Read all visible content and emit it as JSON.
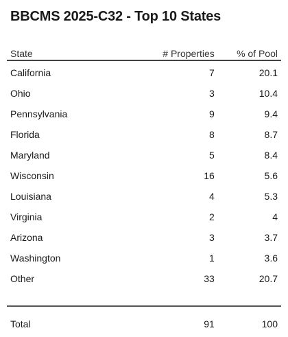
{
  "title": "BBCMS 2025-C32 - Top 10 States",
  "chart_data": {
    "type": "table",
    "title": "BBCMS 2025-C32 - Top 10 States",
    "columns": [
      "State",
      "# Properties",
      "% of Pool"
    ],
    "rows": [
      {
        "state": "California",
        "properties": "7",
        "pct": "20.1"
      },
      {
        "state": "Ohio",
        "properties": "3",
        "pct": "10.4"
      },
      {
        "state": "Pennsylvania",
        "properties": "9",
        "pct": "9.4"
      },
      {
        "state": "Florida",
        "properties": "8",
        "pct": "8.7"
      },
      {
        "state": "Maryland",
        "properties": "5",
        "pct": "8.4"
      },
      {
        "state": "Wisconsin",
        "properties": "16",
        "pct": "5.6"
      },
      {
        "state": "Louisiana",
        "properties": "4",
        "pct": "5.3"
      },
      {
        "state": "Virginia",
        "properties": "2",
        "pct": "4"
      },
      {
        "state": "Arizona",
        "properties": "3",
        "pct": "3.7"
      },
      {
        "state": "Washington",
        "properties": "1",
        "pct": "3.6"
      },
      {
        "state": "Other",
        "properties": "33",
        "pct": "20.7"
      }
    ],
    "total": {
      "label": "Total",
      "properties": "91",
      "pct": "100"
    }
  }
}
